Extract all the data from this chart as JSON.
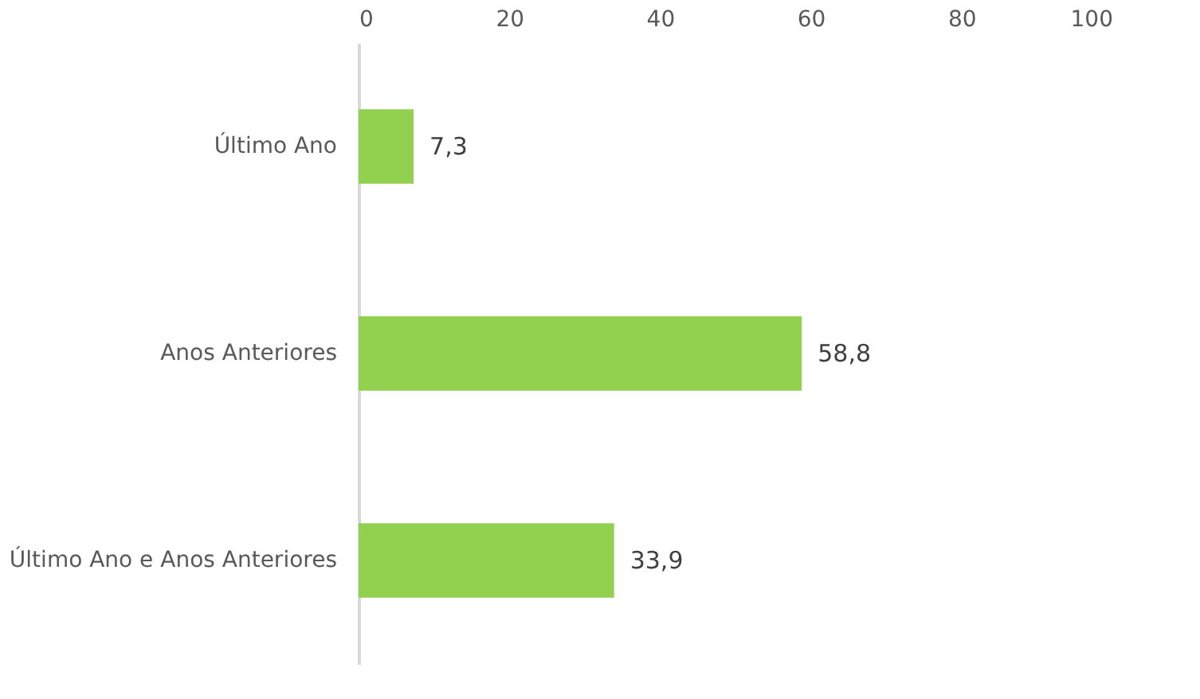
{
  "chart_data": {
    "type": "bar",
    "orientation": "horizontal",
    "categories": [
      "Último Ano",
      "Anos Anteriores",
      "Último Ano e Anos Anteriores"
    ],
    "values": [
      7.3,
      58.8,
      33.9
    ],
    "value_labels": [
      "7,3",
      "58,8",
      "33,9"
    ],
    "color": "#92d050",
    "xlim": [
      0,
      100
    ],
    "xticks": [
      0,
      20,
      40,
      60,
      80,
      100
    ],
    "grid": false
  }
}
